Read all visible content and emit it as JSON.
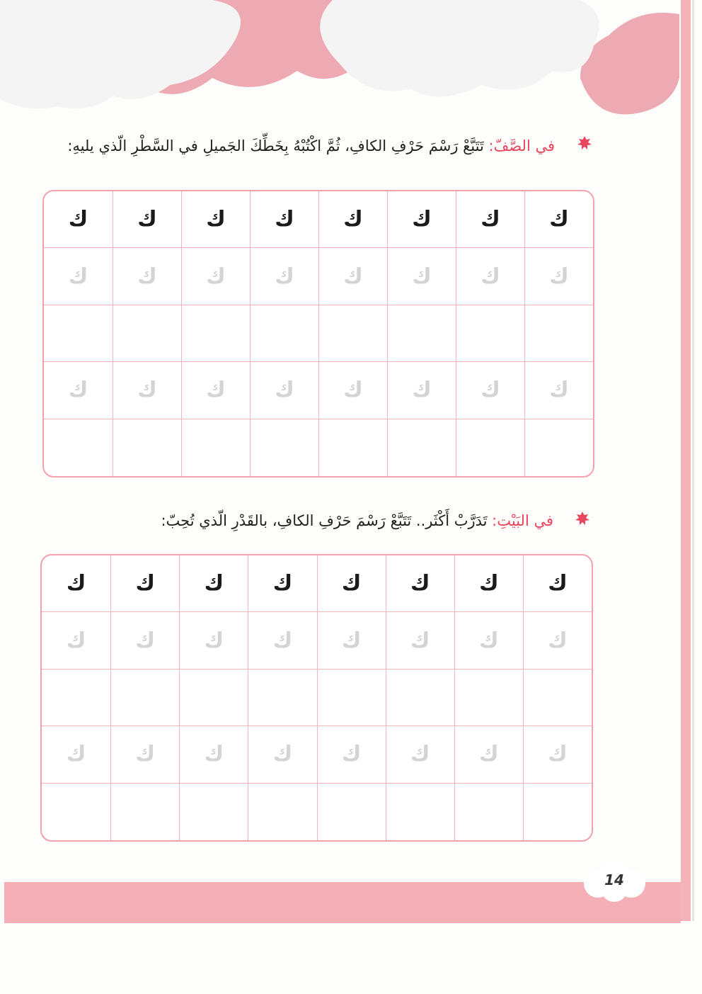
{
  "colors": {
    "accent": "#e8475d",
    "pink": "#f5b0b7",
    "grid_border": "#f2a2ad"
  },
  "classwork": {
    "label": "في الصَّفّ:",
    "text": " تَتَبَّعْ رَسْمَ حَرْفِ الكافِ، ثُمَّ اكْتُبْهُ بِخَطِّكَ الجَميلِ في السَّطْرِ الّذي يليهِ:",
    "rows": [
      {
        "style": "dark",
        "letters": [
          "ك",
          "ك",
          "ك",
          "ك",
          "ك",
          "ك",
          "ك",
          "ك"
        ]
      },
      {
        "style": "light",
        "letters": [
          "ك",
          "ك",
          "ك",
          "ك",
          "ك",
          "ك",
          "ك",
          "ك"
        ]
      },
      {
        "style": "empty",
        "letters": [
          "",
          "",
          "",
          "",
          "",
          "",
          "",
          ""
        ]
      },
      {
        "style": "light",
        "letters": [
          "ك",
          "ك",
          "ك",
          "ك",
          "ك",
          "ك",
          "ك",
          "ك"
        ]
      },
      {
        "style": "empty",
        "letters": [
          "",
          "",
          "",
          "",
          "",
          "",
          "",
          ""
        ]
      }
    ]
  },
  "homework": {
    "label": "في البَيْتِ:",
    "text": " تَدَرَّبْ أَكْثَر.. تَتَبَّعْ رَسْمَ حَرْفِ الكافِ، بالقَدْرِ الّذي تُحِبّ:",
    "rows": [
      {
        "style": "dark",
        "letters": [
          "ك",
          "ك",
          "ك",
          "ك",
          "ك",
          "ك",
          "ك",
          "ك"
        ]
      },
      {
        "style": "light",
        "letters": [
          "ك",
          "ك",
          "ك",
          "ك",
          "ك",
          "ك",
          "ك",
          "ك"
        ]
      },
      {
        "style": "empty",
        "letters": [
          "",
          "",
          "",
          "",
          "",
          "",
          "",
          ""
        ]
      },
      {
        "style": "light",
        "letters": [
          "ك",
          "ك",
          "ك",
          "ك",
          "ك",
          "ك",
          "ك",
          "ك"
        ]
      },
      {
        "style": "empty",
        "letters": [
          "",
          "",
          "",
          "",
          "",
          "",
          "",
          ""
        ]
      }
    ]
  },
  "page_number": "14"
}
